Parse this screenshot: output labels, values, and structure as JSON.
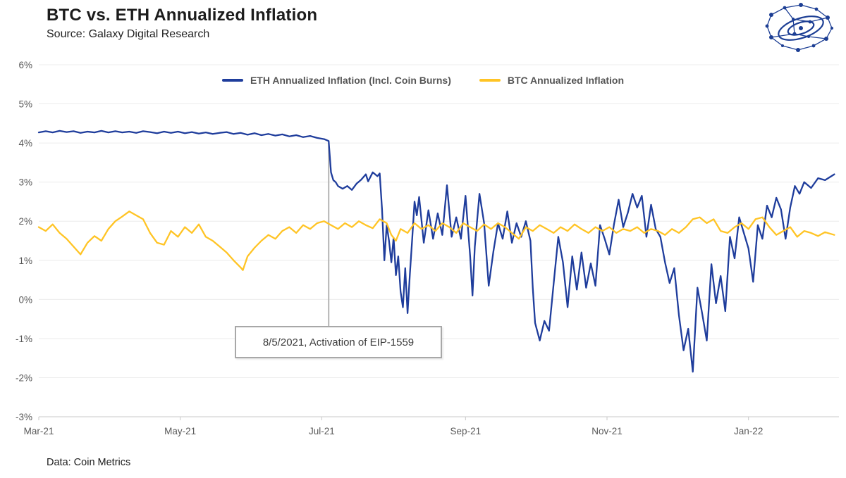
{
  "header": {
    "title": "BTC vs. ETH Annualized Inflation",
    "source": "Source: Galaxy Digital Research"
  },
  "footer": {
    "note": "Data: Coin Metrics"
  },
  "logo": {
    "name": "galaxy-digital-logo",
    "color": "#1c3e94"
  },
  "chart_data": {
    "type": "line",
    "title": "BTC vs. ETH Annualized Inflation",
    "x_unit": "days since 2021-03-01",
    "x_domain": [
      0,
      345
    ],
    "y_domain": [
      -3,
      6
    ],
    "grid": "horizontal light gray lines at each 1%",
    "legend_position": "top-center",
    "y_ticks": [
      {
        "label": "6%",
        "value": 6
      },
      {
        "label": "5%",
        "value": 5
      },
      {
        "label": "4%",
        "value": 4
      },
      {
        "label": "3%",
        "value": 3
      },
      {
        "label": "2%",
        "value": 2
      },
      {
        "label": "1%",
        "value": 1
      },
      {
        "label": "0%",
        "value": 0
      },
      {
        "label": "-1%",
        "value": -1
      },
      {
        "label": "-2%",
        "value": -2
      },
      {
        "label": "-3%",
        "value": -3
      }
    ],
    "x_ticks": [
      {
        "label": "Mar-21",
        "day": 0
      },
      {
        "label": "May-21",
        "day": 61
      },
      {
        "label": "Jul-21",
        "day": 122
      },
      {
        "label": "Sep-21",
        "day": 184
      },
      {
        "label": "Nov-21",
        "day": 245
      },
      {
        "label": "Jan-22",
        "day": 306
      }
    ],
    "annotation": {
      "label": "8/5/2021, Activation of EIP-1559",
      "day": 125,
      "line_top_pct": 4.0,
      "line_bottom_pct": -0.68
    },
    "series": [
      {
        "name": "ETH Annualized Inflation (Incl. Coin Burns)",
        "color": "#1f3d9c",
        "points": [
          [
            0,
            4.27
          ],
          [
            3,
            4.3
          ],
          [
            6,
            4.27
          ],
          [
            9,
            4.31
          ],
          [
            12,
            4.28
          ],
          [
            15,
            4.3
          ],
          [
            18,
            4.26
          ],
          [
            21,
            4.29
          ],
          [
            24,
            4.27
          ],
          [
            27,
            4.31
          ],
          [
            30,
            4.27
          ],
          [
            33,
            4.3
          ],
          [
            36,
            4.27
          ],
          [
            39,
            4.29
          ],
          [
            42,
            4.26
          ],
          [
            45,
            4.3
          ],
          [
            48,
            4.28
          ],
          [
            51,
            4.25
          ],
          [
            54,
            4.29
          ],
          [
            57,
            4.26
          ],
          [
            60,
            4.29
          ],
          [
            63,
            4.25
          ],
          [
            66,
            4.28
          ],
          [
            69,
            4.24
          ],
          [
            72,
            4.27
          ],
          [
            75,
            4.23
          ],
          [
            78,
            4.26
          ],
          [
            81,
            4.28
          ],
          [
            84,
            4.23
          ],
          [
            87,
            4.26
          ],
          [
            90,
            4.21
          ],
          [
            93,
            4.25
          ],
          [
            96,
            4.2
          ],
          [
            99,
            4.23
          ],
          [
            102,
            4.19
          ],
          [
            105,
            4.22
          ],
          [
            108,
            4.17
          ],
          [
            111,
            4.2
          ],
          [
            114,
            4.15
          ],
          [
            117,
            4.18
          ],
          [
            120,
            4.13
          ],
          [
            123,
            4.1
          ],
          [
            125,
            4.05
          ],
          [
            126,
            3.25
          ],
          [
            127,
            3.05
          ],
          [
            128,
            3.0
          ],
          [
            129,
            2.9
          ],
          [
            131,
            2.83
          ],
          [
            133,
            2.9
          ],
          [
            135,
            2.8
          ],
          [
            137,
            2.96
          ],
          [
            139,
            3.06
          ],
          [
            141,
            3.2
          ],
          [
            142,
            3.02
          ],
          [
            144,
            3.25
          ],
          [
            146,
            3.15
          ],
          [
            147,
            3.22
          ],
          [
            148,
            2.3
          ],
          [
            149,
            1.0
          ],
          [
            150,
            1.9
          ],
          [
            151,
            1.5
          ],
          [
            152,
            0.95
          ],
          [
            153,
            1.58
          ],
          [
            154,
            0.62
          ],
          [
            155,
            1.1
          ],
          [
            156,
            0.2
          ],
          [
            157,
            -0.2
          ],
          [
            158,
            0.8
          ],
          [
            159,
            -0.35
          ],
          [
            160,
            0.65
          ],
          [
            161,
            1.55
          ],
          [
            162,
            2.5
          ],
          [
            163,
            2.15
          ],
          [
            164,
            2.62
          ],
          [
            166,
            1.45
          ],
          [
            168,
            2.28
          ],
          [
            170,
            1.55
          ],
          [
            172,
            2.2
          ],
          [
            174,
            1.65
          ],
          [
            176,
            2.92
          ],
          [
            178,
            1.6
          ],
          [
            180,
            2.1
          ],
          [
            182,
            1.55
          ],
          [
            184,
            2.65
          ],
          [
            186,
            1.1
          ],
          [
            187,
            0.1
          ],
          [
            188,
            1.35
          ],
          [
            190,
            2.7
          ],
          [
            192,
            1.95
          ],
          [
            194,
            0.35
          ],
          [
            196,
            1.22
          ],
          [
            198,
            1.95
          ],
          [
            200,
            1.55
          ],
          [
            202,
            2.25
          ],
          [
            204,
            1.45
          ],
          [
            206,
            1.95
          ],
          [
            208,
            1.6
          ],
          [
            210,
            2.0
          ],
          [
            212,
            1.5
          ],
          [
            213,
            0.3
          ],
          [
            214,
            -0.6
          ],
          [
            216,
            -1.05
          ],
          [
            218,
            -0.55
          ],
          [
            220,
            -0.8
          ],
          [
            222,
            0.4
          ],
          [
            224,
            1.6
          ],
          [
            226,
            0.95
          ],
          [
            228,
            -0.2
          ],
          [
            230,
            1.1
          ],
          [
            232,
            0.25
          ],
          [
            234,
            1.2
          ],
          [
            236,
            0.3
          ],
          [
            238,
            0.92
          ],
          [
            240,
            0.35
          ],
          [
            242,
            1.9
          ],
          [
            244,
            1.55
          ],
          [
            246,
            1.15
          ],
          [
            248,
            1.92
          ],
          [
            250,
            2.55
          ],
          [
            252,
            1.85
          ],
          [
            254,
            2.22
          ],
          [
            256,
            2.7
          ],
          [
            258,
            2.35
          ],
          [
            260,
            2.65
          ],
          [
            262,
            1.6
          ],
          [
            264,
            2.42
          ],
          [
            266,
            1.8
          ],
          [
            268,
            1.6
          ],
          [
            270,
            0.95
          ],
          [
            272,
            0.42
          ],
          [
            274,
            0.8
          ],
          [
            276,
            -0.4
          ],
          [
            278,
            -1.3
          ],
          [
            280,
            -0.75
          ],
          [
            282,
            -1.85
          ],
          [
            284,
            0.3
          ],
          [
            286,
            -0.35
          ],
          [
            288,
            -1.05
          ],
          [
            290,
            0.9
          ],
          [
            292,
            -0.1
          ],
          [
            294,
            0.6
          ],
          [
            296,
            -0.3
          ],
          [
            298,
            1.6
          ],
          [
            300,
            1.05
          ],
          [
            302,
            2.1
          ],
          [
            304,
            1.7
          ],
          [
            306,
            1.3
          ],
          [
            308,
            0.45
          ],
          [
            310,
            1.9
          ],
          [
            312,
            1.55
          ],
          [
            314,
            2.4
          ],
          [
            316,
            2.1
          ],
          [
            318,
            2.6
          ],
          [
            320,
            2.3
          ],
          [
            322,
            1.55
          ],
          [
            324,
            2.35
          ],
          [
            326,
            2.9
          ],
          [
            328,
            2.7
          ],
          [
            330,
            3.0
          ],
          [
            333,
            2.85
          ],
          [
            336,
            3.1
          ],
          [
            339,
            3.05
          ],
          [
            343,
            3.2
          ]
        ]
      },
      {
        "name": "BTC Annualized Inflation",
        "color": "#ffc425",
        "points": [
          [
            0,
            1.85
          ],
          [
            3,
            1.75
          ],
          [
            6,
            1.92
          ],
          [
            9,
            1.7
          ],
          [
            12,
            1.55
          ],
          [
            15,
            1.35
          ],
          [
            18,
            1.15
          ],
          [
            21,
            1.45
          ],
          [
            24,
            1.62
          ],
          [
            27,
            1.5
          ],
          [
            30,
            1.8
          ],
          [
            33,
            2.0
          ],
          [
            36,
            2.12
          ],
          [
            39,
            2.25
          ],
          [
            42,
            2.15
          ],
          [
            45,
            2.05
          ],
          [
            48,
            1.7
          ],
          [
            51,
            1.45
          ],
          [
            54,
            1.4
          ],
          [
            57,
            1.75
          ],
          [
            60,
            1.6
          ],
          [
            63,
            1.85
          ],
          [
            66,
            1.7
          ],
          [
            69,
            1.92
          ],
          [
            72,
            1.6
          ],
          [
            75,
            1.5
          ],
          [
            78,
            1.35
          ],
          [
            81,
            1.2
          ],
          [
            84,
            1.0
          ],
          [
            87,
            0.82
          ],
          [
            88,
            0.75
          ],
          [
            90,
            1.1
          ],
          [
            93,
            1.32
          ],
          [
            96,
            1.5
          ],
          [
            99,
            1.65
          ],
          [
            102,
            1.55
          ],
          [
            105,
            1.75
          ],
          [
            108,
            1.85
          ],
          [
            111,
            1.7
          ],
          [
            114,
            1.9
          ],
          [
            117,
            1.8
          ],
          [
            120,
            1.95
          ],
          [
            123,
            2.0
          ],
          [
            126,
            1.9
          ],
          [
            129,
            1.8
          ],
          [
            132,
            1.95
          ],
          [
            135,
            1.85
          ],
          [
            138,
            2.0
          ],
          [
            141,
            1.9
          ],
          [
            144,
            1.82
          ],
          [
            147,
            2.05
          ],
          [
            150,
            1.95
          ],
          [
            152,
            1.65
          ],
          [
            154,
            1.5
          ],
          [
            156,
            1.8
          ],
          [
            159,
            1.7
          ],
          [
            162,
            1.95
          ],
          [
            165,
            1.8
          ],
          [
            168,
            1.9
          ],
          [
            171,
            1.75
          ],
          [
            174,
            1.95
          ],
          [
            177,
            1.85
          ],
          [
            180,
            1.7
          ],
          [
            183,
            1.95
          ],
          [
            186,
            1.85
          ],
          [
            189,
            1.75
          ],
          [
            192,
            1.92
          ],
          [
            195,
            1.8
          ],
          [
            198,
            1.95
          ],
          [
            201,
            1.85
          ],
          [
            204,
            1.7
          ],
          [
            207,
            1.55
          ],
          [
            210,
            1.85
          ],
          [
            213,
            1.75
          ],
          [
            216,
            1.9
          ],
          [
            219,
            1.8
          ],
          [
            222,
            1.7
          ],
          [
            225,
            1.85
          ],
          [
            228,
            1.75
          ],
          [
            231,
            1.92
          ],
          [
            234,
            1.8
          ],
          [
            237,
            1.7
          ],
          [
            240,
            1.85
          ],
          [
            243,
            1.75
          ],
          [
            246,
            1.85
          ],
          [
            249,
            1.7
          ],
          [
            252,
            1.8
          ],
          [
            255,
            1.75
          ],
          [
            258,
            1.85
          ],
          [
            261,
            1.7
          ],
          [
            264,
            1.8
          ],
          [
            267,
            1.75
          ],
          [
            270,
            1.65
          ],
          [
            273,
            1.8
          ],
          [
            276,
            1.7
          ],
          [
            279,
            1.85
          ],
          [
            282,
            2.05
          ],
          [
            285,
            2.1
          ],
          [
            288,
            1.95
          ],
          [
            291,
            2.05
          ],
          [
            294,
            1.75
          ],
          [
            297,
            1.7
          ],
          [
            300,
            1.85
          ],
          [
            303,
            1.95
          ],
          [
            306,
            1.8
          ],
          [
            309,
            2.05
          ],
          [
            312,
            2.1
          ],
          [
            315,
            1.85
          ],
          [
            318,
            1.65
          ],
          [
            321,
            1.75
          ],
          [
            324,
            1.85
          ],
          [
            327,
            1.6
          ],
          [
            330,
            1.75
          ],
          [
            333,
            1.7
          ],
          [
            336,
            1.62
          ],
          [
            339,
            1.72
          ],
          [
            343,
            1.65
          ]
        ]
      }
    ]
  }
}
